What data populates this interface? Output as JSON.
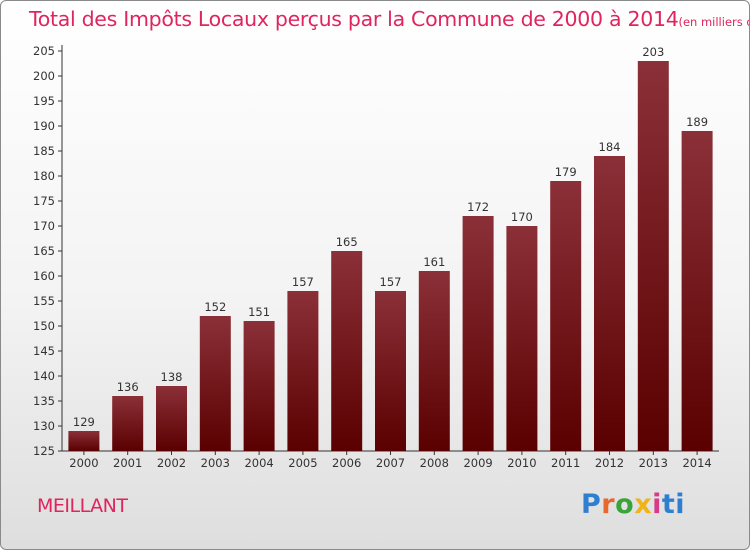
{
  "chart_data": {
    "type": "bar",
    "title": "Total des Impôts Locaux perçus par la Commune de 2000 à 2014",
    "title_units": "(en milliers d'€)",
    "categories": [
      "2000",
      "2001",
      "2002",
      "2003",
      "2004",
      "2005",
      "2006",
      "2007",
      "2008",
      "2009",
      "2010",
      "2011",
      "2012",
      "2013",
      "2014"
    ],
    "values": [
      129,
      136,
      138,
      152,
      151,
      157,
      165,
      157,
      161,
      172,
      170,
      179,
      184,
      203,
      189
    ],
    "ylim": [
      125,
      205
    ],
    "yticks": [
      125,
      130,
      135,
      140,
      145,
      150,
      155,
      160,
      165,
      170,
      175,
      180,
      185,
      190,
      195,
      200,
      205
    ],
    "grid": false,
    "bar_color_top": "#8b3038",
    "bar_color_bottom": "#5a0000",
    "title_color": "#e0245e"
  },
  "commune": "MEILLANT",
  "brand": [
    "P",
    "r",
    "o",
    "x",
    "i",
    "t",
    "i"
  ]
}
